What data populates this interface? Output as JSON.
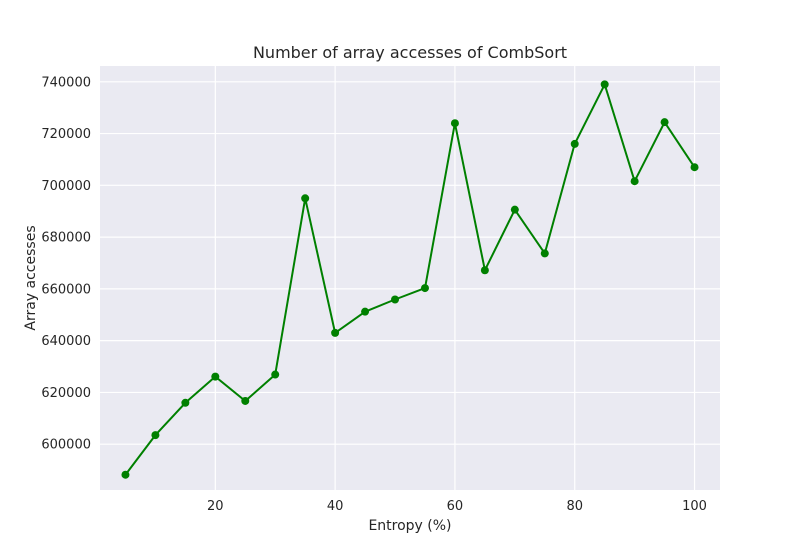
{
  "chart_data": {
    "type": "line",
    "title": "Number of array accesses of CombSort",
    "xlabel": "Entropy (%)",
    "ylabel": "Array accesses",
    "xlim": [
      0.75,
      104.25
    ],
    "ylim": [
      582300,
      746100
    ],
    "x_ticks": [
      20,
      40,
      60,
      80,
      100
    ],
    "x_tick_labels": [
      "20",
      "40",
      "60",
      "80",
      "100"
    ],
    "y_ticks": [
      600000,
      620000,
      640000,
      660000,
      680000,
      700000,
      720000,
      740000
    ],
    "y_tick_labels": [
      "600000",
      "620000",
      "640000",
      "660000",
      "680000",
      "700000",
      "720000",
      "740000"
    ],
    "grid": true,
    "background": "#eaeaf2",
    "series": [
      {
        "color": "#008000",
        "marker": "circle",
        "x": [
          5,
          10,
          15,
          20,
          25,
          30,
          35,
          40,
          45,
          50,
          55,
          60,
          65,
          70,
          75,
          80,
          85,
          90,
          95,
          100
        ],
        "y": [
          588200,
          603500,
          616000,
          626100,
          616700,
          626900,
          695000,
          643000,
          651200,
          655900,
          660300,
          724000,
          667200,
          690600,
          673700,
          716000,
          739000,
          701600,
          724400,
          707000
        ]
      }
    ]
  }
}
